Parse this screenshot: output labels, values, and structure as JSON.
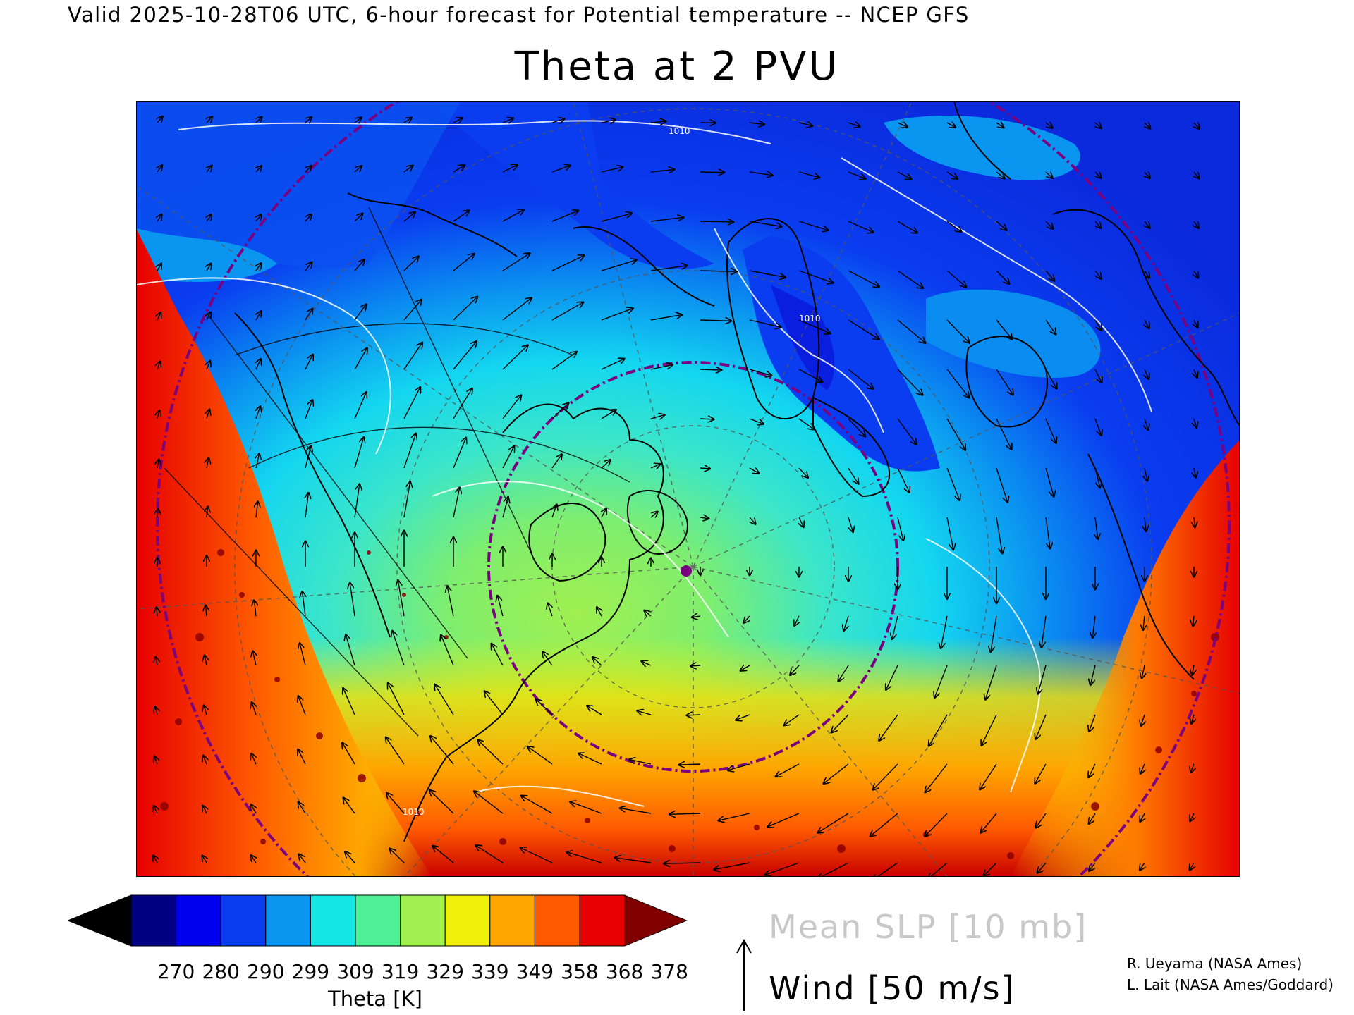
{
  "header": "Valid 2025-10-28T06 UTC, 6-hour forecast for Potential temperature -- NCEP GFS",
  "title": "Theta at 2 PVU",
  "map": {
    "variable": "Potential temperature",
    "level": "2 PVU",
    "projection": "polar stereographic (North Atlantic / North America)",
    "overlays": [
      "coastlines",
      "country borders",
      "lat-lon grid",
      "mean SLP contours",
      "wind vectors",
      "purple dash-dot circles"
    ],
    "slp_contour_label": "1010",
    "marker_color": "#7a0080"
  },
  "colorbar": {
    "ticks": [
      "270",
      "280",
      "290",
      "299",
      "309",
      "319",
      "329",
      "339",
      "349",
      "358",
      "368",
      "378"
    ],
    "colors": [
      "#000000",
      "#000080",
      "#0000ee",
      "#0a3cf0",
      "#0a96f0",
      "#14e6e6",
      "#4ef096",
      "#a0f050",
      "#f0f00a",
      "#ffa500",
      "#ff5a00",
      "#e60000",
      "#800000"
    ],
    "title": "Theta [K]"
  },
  "legend": {
    "slp": "Mean SLP [10 mb]",
    "slp_color": "#c8c8c8",
    "wind": "Wind [50 m/s]"
  },
  "credits": [
    "R. Ueyama (NASA Ames)",
    "L. Lait (NASA Ames/Goddard)"
  ]
}
